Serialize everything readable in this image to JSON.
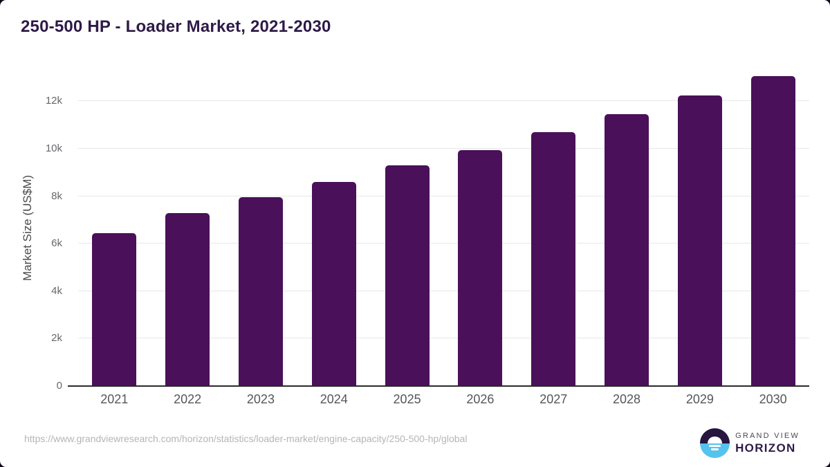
{
  "chart_data": {
    "type": "bar",
    "title": "250-500 HP - Loader Market, 2021-2030",
    "categories": [
      "2021",
      "2022",
      "2023",
      "2024",
      "2025",
      "2026",
      "2027",
      "2028",
      "2029",
      "2030"
    ],
    "values": [
      6450,
      7300,
      7950,
      8600,
      9300,
      9950,
      10700,
      11450,
      12250,
      13050
    ],
    "xlabel": "",
    "ylabel": "Market Size (US$M)",
    "ylim": [
      0,
      13350
    ],
    "yticks": [
      0,
      2000,
      4000,
      6000,
      8000,
      10000,
      12000
    ],
    "ytick_labels": [
      "0",
      "2k",
      "4k",
      "6k",
      "8k",
      "10k",
      "12k"
    ],
    "grid": "horizontal-only",
    "legend": "none",
    "bar_color": "#4a1059"
  },
  "footer": {
    "source_url": "https://www.grandviewresearch.com/horizon/statistics/loader-market/engine-capacity/250-500-hp/global",
    "logo": {
      "line1": "GRAND VIEW",
      "line2": "HORIZON"
    }
  },
  "colors": {
    "title": "#2e1a47",
    "bar": "#4a1059",
    "axis_line": "#2a2a2a",
    "gridline": "#e7e7ea",
    "tick_label": "#66676b",
    "url_text": "#b5b5b5",
    "logo_dark": "#27163f",
    "logo_blue": "#56c3ee",
    "background": "#ffffff"
  }
}
